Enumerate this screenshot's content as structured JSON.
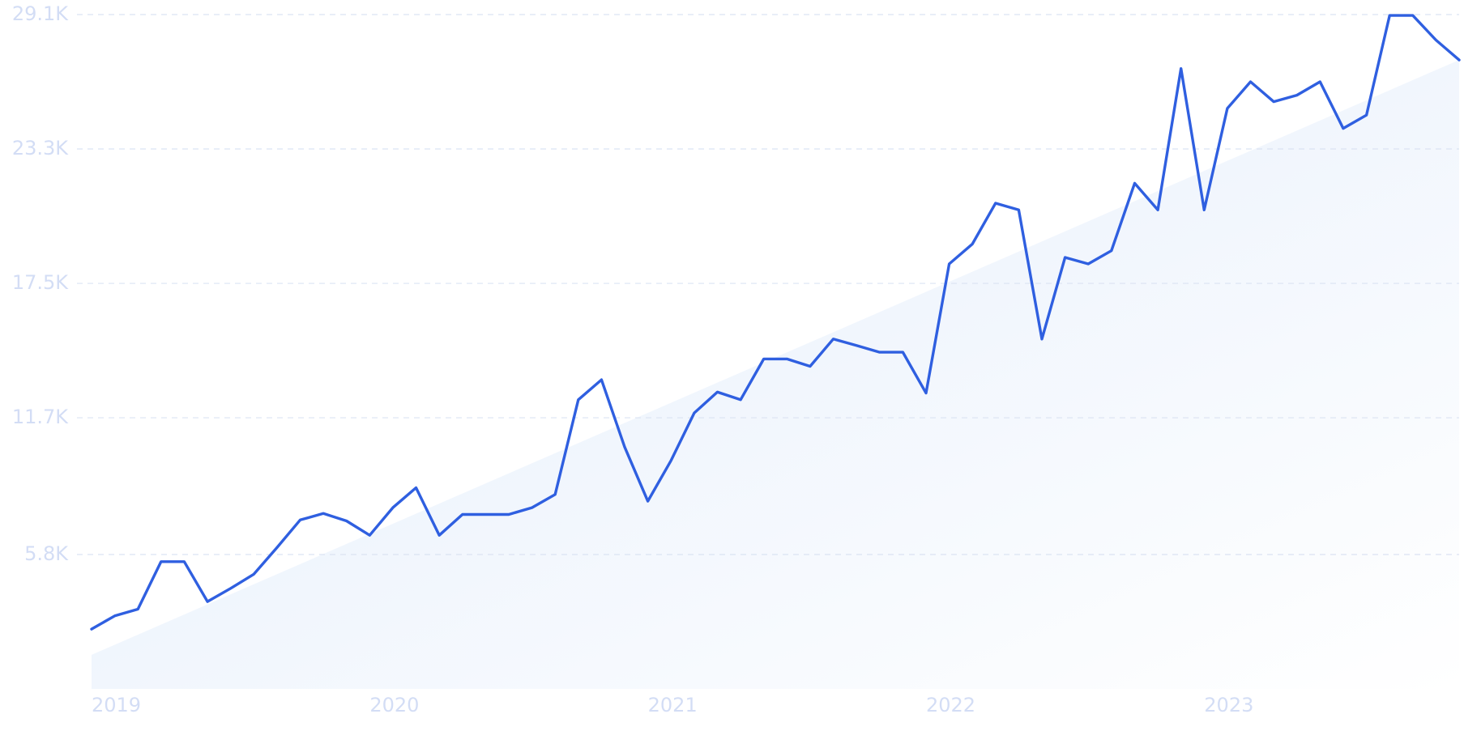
{
  "chart_data": {
    "type": "line",
    "categories": [
      "2019",
      null,
      null,
      null,
      null,
      null,
      null,
      null,
      null,
      null,
      null,
      null,
      "2020",
      null,
      null,
      null,
      null,
      null,
      null,
      null,
      null,
      null,
      null,
      null,
      "2021",
      null,
      null,
      null,
      null,
      null,
      null,
      null,
      null,
      null,
      null,
      null,
      "2022",
      null,
      null,
      null,
      null,
      null,
      null,
      null,
      null,
      null,
      null,
      null,
      "2023",
      null,
      null,
      null,
      null,
      null,
      null,
      null,
      null,
      null,
      null,
      null
    ],
    "series": [
      {
        "color": "#2f5fe0",
        "values": [
          2580,
          3150,
          3440,
          5490,
          5490,
          3770,
          4340,
          4950,
          6100,
          7290,
          7570,
          7250,
          6630,
          7820,
          8680,
          6630,
          7530,
          7530,
          7530,
          7820,
          8390,
          12480,
          13340,
          10440,
          8100,
          9860,
          11910,
          12810,
          12480,
          14240,
          14240,
          13920,
          15100,
          14820,
          14530,
          14530,
          12770,
          18340,
          19200,
          20960,
          20670,
          15100,
          18620,
          18340,
          18910,
          21820,
          20670,
          26770,
          20670,
          25050,
          26200,
          25340,
          25620,
          26200,
          24190,
          24760,
          29060,
          29060,
          28000,
          27140
        ]
      }
    ],
    "trend_area": {
      "color": "#e3edfb",
      "values": [
        1470,
        27140
      ]
    },
    "ylim": [
      0,
      29100
    ],
    "yticks": [
      {
        "value": 5800,
        "label": "5.8K"
      },
      {
        "value": 11700,
        "label": "11.7K"
      },
      {
        "value": 17500,
        "label": "17.5K"
      },
      {
        "value": 23300,
        "label": "23.3K"
      },
      {
        "value": 29100,
        "label": "29.1K"
      }
    ],
    "grid": true
  }
}
